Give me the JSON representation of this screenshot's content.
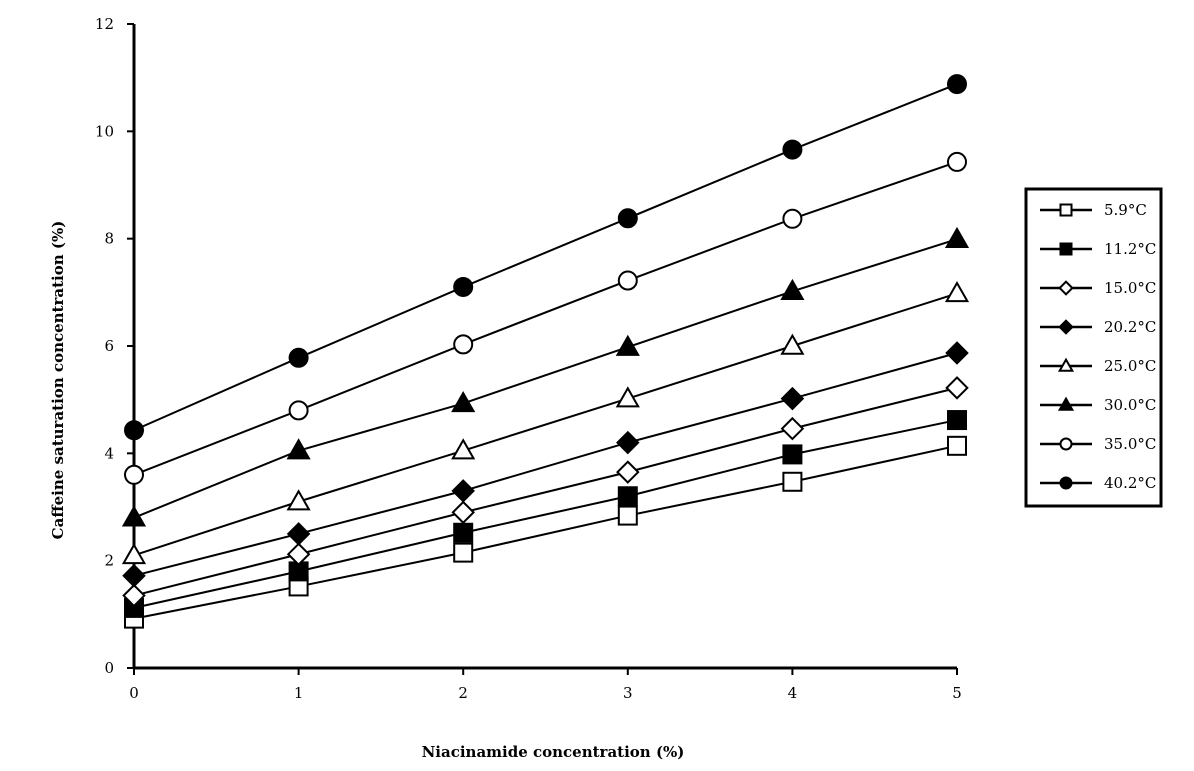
{
  "chart_data": {
    "type": "line",
    "xlabel": "Niacinamide concentration (%)",
    "ylabel": "Caffeine saturation concentration (%)",
    "xlim": [
      0,
      5
    ],
    "ylim": [
      0,
      12
    ],
    "x_ticks": [
      "0",
      "1",
      "2",
      "3",
      "4",
      "5"
    ],
    "y_ticks": [
      "0",
      "2",
      "4",
      "6",
      "8",
      "10",
      "12"
    ],
    "x": [
      0,
      1,
      2,
      3,
      4,
      5
    ],
    "grid": false,
    "legend_position": "right",
    "series": [
      {
        "name": "5.9°C",
        "marker": "square",
        "fill": "open",
        "values": [
          0.92,
          1.52,
          2.15,
          2.84,
          3.47,
          4.14
        ]
      },
      {
        "name": "11.2°C",
        "marker": "square",
        "fill": "filled",
        "values": [
          1.12,
          1.8,
          2.52,
          3.2,
          3.98,
          4.62
        ]
      },
      {
        "name": "15.0°C",
        "marker": "diamond",
        "fill": "open",
        "values": [
          1.35,
          2.12,
          2.9,
          3.65,
          4.46,
          5.22
        ]
      },
      {
        "name": "20.2°C",
        "marker": "diamond",
        "fill": "filled",
        "values": [
          1.72,
          2.5,
          3.3,
          4.2,
          5.02,
          5.87
        ]
      },
      {
        "name": "25.0°C",
        "marker": "triangle",
        "fill": "open",
        "values": [
          2.1,
          3.1,
          4.05,
          5.02,
          6.0,
          6.98
        ]
      },
      {
        "name": "30.0°C",
        "marker": "triangle",
        "fill": "filled",
        "values": [
          2.8,
          4.05,
          4.93,
          5.98,
          7.02,
          7.99
        ]
      },
      {
        "name": "35.0°C",
        "marker": "circle",
        "fill": "open",
        "values": [
          3.6,
          4.8,
          6.03,
          7.22,
          8.37,
          9.43
        ]
      },
      {
        "name": "40.2°C",
        "marker": "circle",
        "fill": "filled",
        "values": [
          4.43,
          5.78,
          7.1,
          8.38,
          9.66,
          10.88
        ]
      }
    ]
  }
}
